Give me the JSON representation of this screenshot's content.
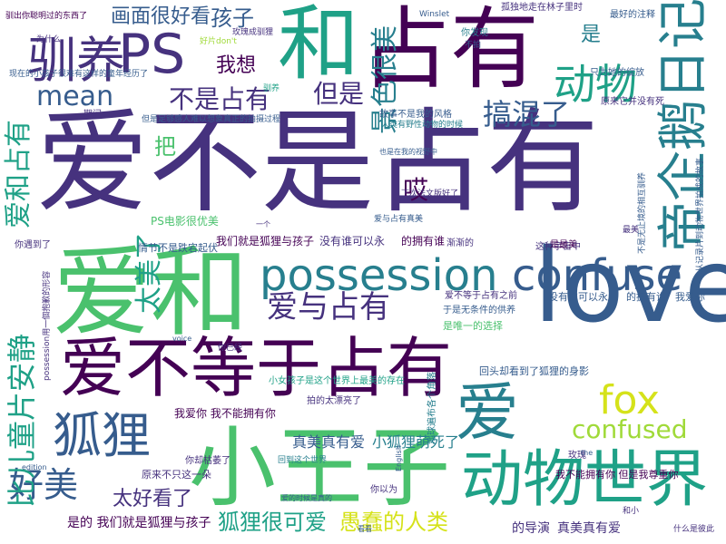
{
  "palette": {
    "c1": "#440154",
    "c2": "#46327e",
    "c3": "#365c8d",
    "c4": "#277f8e",
    "c5": "#1fa187",
    "c6": "#4ac16d",
    "c7": "#a0da39",
    "c8": "#d5e21a"
  },
  "words": [
    {
      "id": "w1",
      "text": "爱不是占有",
      "color": "c2"
    },
    {
      "id": "w2",
      "text": "love",
      "color": "c3"
    },
    {
      "id": "w3",
      "text": "占有",
      "color": "c1"
    },
    {
      "id": "w4",
      "text": "和",
      "color": "c5"
    },
    {
      "id": "w5",
      "text": "爱和",
      "color": "c6"
    },
    {
      "id": "w6",
      "text": "爱不等于占有",
      "color": "c1"
    },
    {
      "id": "w7",
      "text": "小王子",
      "color": "c6"
    },
    {
      "id": "w8",
      "text": "possession",
      "color": "c4"
    },
    {
      "id": "w9",
      "text": "confuse",
      "color": "c3"
    },
    {
      "id": "w10",
      "text": "动物世界",
      "color": "c5"
    },
    {
      "id": "w11",
      "text": "帝企鹅日记",
      "color": "c4"
    },
    {
      "id": "w12",
      "text": "驯养",
      "color": "c2"
    },
    {
      "id": "w13",
      "text": "PS",
      "color": "c2"
    },
    {
      "id": "w14",
      "text": "狐狸",
      "color": "c3"
    },
    {
      "id": "w15",
      "text": "爱",
      "color": "c4"
    },
    {
      "id": "w16",
      "text": "mean",
      "color": "c3"
    },
    {
      "id": "w17",
      "text": "fox",
      "color": "c8"
    },
    {
      "id": "w18",
      "text": "好美",
      "color": "c3"
    },
    {
      "id": "w19",
      "text": "confused",
      "color": "c7"
    },
    {
      "id": "w20",
      "text": "比儿童片安静",
      "color": "c5"
    },
    {
      "id": "w21",
      "text": "爱和占有",
      "color": "c5"
    },
    {
      "id": "w22",
      "text": "不是占有",
      "color": "c2"
    },
    {
      "id": "w23",
      "text": "但是",
      "color": "c2"
    },
    {
      "id": "w24",
      "text": "动物",
      "color": "c5"
    },
    {
      "id": "w25",
      "text": "景色很美",
      "color": "c4"
    },
    {
      "id": "w26",
      "text": "搞混了",
      "color": "c3"
    },
    {
      "id": "w27",
      "text": "画面很好看",
      "color": "c3"
    },
    {
      "id": "w28",
      "text": "孩子",
      "color": "c3"
    },
    {
      "id": "w29",
      "text": "我想",
      "color": "c1"
    },
    {
      "id": "w30",
      "text": "爱与占有",
      "color": "c2"
    },
    {
      "id": "w31",
      "text": "太美了",
      "color": "c5"
    },
    {
      "id": "w32",
      "text": "狐狸很可爱",
      "color": "c5"
    },
    {
      "id": "w33",
      "text": "愚蠢的人类",
      "color": "c8"
    },
    {
      "id": "w34",
      "text": "太好看了",
      "color": "c2"
    },
    {
      "id": "w35",
      "text": "哎",
      "color": "c1"
    },
    {
      "id": "w36",
      "text": "把",
      "color": "c6"
    },
    {
      "id": "w37",
      "text": "是",
      "color": "c4"
    },
    {
      "id": "w38",
      "text": "真美真有爱",
      "color": "c3"
    },
    {
      "id": "w39",
      "text": "小狐狸萌死了",
      "color": "c4"
    },
    {
      "id": "w40",
      "text": "我们就是狐狸与孩子",
      "color": "c1"
    },
    {
      "id": "w41",
      "text": "没有谁可以永",
      "color": "c2"
    },
    {
      "id": "w42",
      "text": "的拥有谁",
      "color": "c1"
    },
    {
      "id": "w43",
      "text": "是的 我们就是狐狸与孩子",
      "color": "c1"
    },
    {
      "id": "w44",
      "text": "的导演",
      "color": "c2"
    },
    {
      "id": "w45",
      "text": "真美真有爱",
      "color": "c2"
    },
    {
      "id": "w46",
      "text": "PS电影很优美",
      "color": "c6"
    },
    {
      "id": "w47",
      "text": "情节不是跌宕起伏",
      "color": "c3"
    },
    {
      "id": "w48",
      "text": "我爱你 我不能拥有你",
      "color": "c1"
    },
    {
      "id": "w49",
      "text": "我不能拥有你 但是我尊重你",
      "color": "c1"
    },
    {
      "id": "w50",
      "text": "原来不只这一朵",
      "color": "c2"
    },
    {
      "id": "w51",
      "text": "故事不是我的风格",
      "color": "c3"
    },
    {
      "id": "w52",
      "text": "没有谁可以永",
      "color": "c3"
    },
    {
      "id": "w53",
      "text": "的拥有谁",
      "color": "c3"
    },
    {
      "id": "w54",
      "text": "我爱你",
      "color": "c3"
    },
    {
      "id": "w55",
      "text": "是唯一的选择",
      "color": "c6"
    },
    {
      "id": "w56",
      "text": "回头却看到了狐狸的身影",
      "color": "c3"
    },
    {
      "id": "w57",
      "text": "为什么",
      "color": "c2"
    },
    {
      "id": "w58",
      "text": "什么是彼此",
      "color": "c2"
    },
    {
      "id": "w59",
      "text": "玫瑰成驯狸",
      "color": "c2"
    },
    {
      "id": "w60",
      "text": "孤独地走在林子里时",
      "color": "c2"
    },
    {
      "id": "w61",
      "text": "最好的注释",
      "color": "c3"
    },
    {
      "id": "w62",
      "text": "只为她的绽放",
      "color": "c3"
    },
    {
      "id": "w63",
      "text": "原来它并没有死",
      "color": "c2"
    },
    {
      "id": "w64",
      "text": "Winslet",
      "color": "c3"
    },
    {
      "id": "w65",
      "text": "voice",
      "color": "c3"
    },
    {
      "id": "w66",
      "text": "edition",
      "color": "c3"
    },
    {
      "id": "w67",
      "text": "English",
      "color": "c3"
    },
    {
      "id": "w68",
      "text": "你遇到了",
      "color": "c2"
    },
    {
      "id": "w69",
      "text": "驯养",
      "color": "c5"
    },
    {
      "id": "w70",
      "text": "期间",
      "color": "c2"
    },
    {
      "id": "w71",
      "text": "你发现",
      "color": "c4"
    },
    {
      "id": "w72",
      "text": "这种宇宙中",
      "color": "c2"
    },
    {
      "id": "w73",
      "text": "渐渐的",
      "color": "c2"
    },
    {
      "id": "w74",
      "text": "是最美",
      "color": "c1"
    },
    {
      "id": "w75",
      "text": "你却枯萎了",
      "color": "c2"
    },
    {
      "id": "w76",
      "text": "地球遍布各个角落",
      "color": "c4"
    },
    {
      "id": "w77",
      "text": "玫瑰",
      "color": "c2"
    },
    {
      "id": "w78",
      "text": "你以为",
      "color": "c2"
    },
    {
      "id": "w79",
      "text": "回到这个世界",
      "color": "c4"
    },
    {
      "id": "w80",
      "text": "爱与占有真美",
      "color": "c3"
    },
    {
      "id": "w81",
      "text": "下次法文版好了",
      "color": "c2"
    },
    {
      "id": "w82",
      "text": "拍的太漂亮了",
      "color": "c2"
    },
    {
      "id": "w83",
      "text": "小女孩子是这个世界上最美的存在",
      "color": "c5"
    },
    {
      "id": "w84",
      "text": "于是无条件的供养",
      "color": "c3"
    },
    {
      "id": "w85",
      "text": "爱不等于占有之前",
      "color": "c2"
    },
    {
      "id": "w86",
      "text": "好片don't",
      "color": "c7"
    },
    {
      "id": "w87",
      "text": "人类有野性动物的时候",
      "color": "c4"
    },
    {
      "id": "w88",
      "text": "从记录片到动物世界拍成的故事",
      "color": "c3"
    },
    {
      "id": "w89",
      "text": "不是无止境的相互驯养",
      "color": "c3"
    },
    {
      "id": "w90",
      "text": "现在的小孩子很难有这样的童年经历了",
      "color": "c3"
    },
    {
      "id": "w91",
      "text": "驯出你聪明过的东西了",
      "color": "c1"
    },
    {
      "id": "w92",
      "text": "但是足够感人难以想象真正的拍摄过程",
      "color": "c3"
    },
    {
      "id": "w93",
      "text": "possession用一個抱歉的形容",
      "color": "c2"
    },
    {
      "id": "w94",
      "text": "爱的时候是真的",
      "color": "c3"
    },
    {
      "id": "w95",
      "text": "最美",
      "color": "c2"
    },
    {
      "id": "w96",
      "text": "不拍",
      "color": "c3"
    },
    {
      "id": "w97",
      "text": "也是在我的视野中",
      "color": "c3"
    },
    {
      "id": "w98",
      "text": "你已经",
      "color": "c2"
    },
    {
      "id": "w99",
      "text": "一个",
      "color": "c2"
    },
    {
      "id": "w100",
      "text": "the",
      "color": "c3"
    },
    {
      "id": "w101",
      "text": "看看",
      "color": "c3"
    },
    {
      "id": "w102",
      "text": "和小",
      "color": "c2"
    }
  ]
}
